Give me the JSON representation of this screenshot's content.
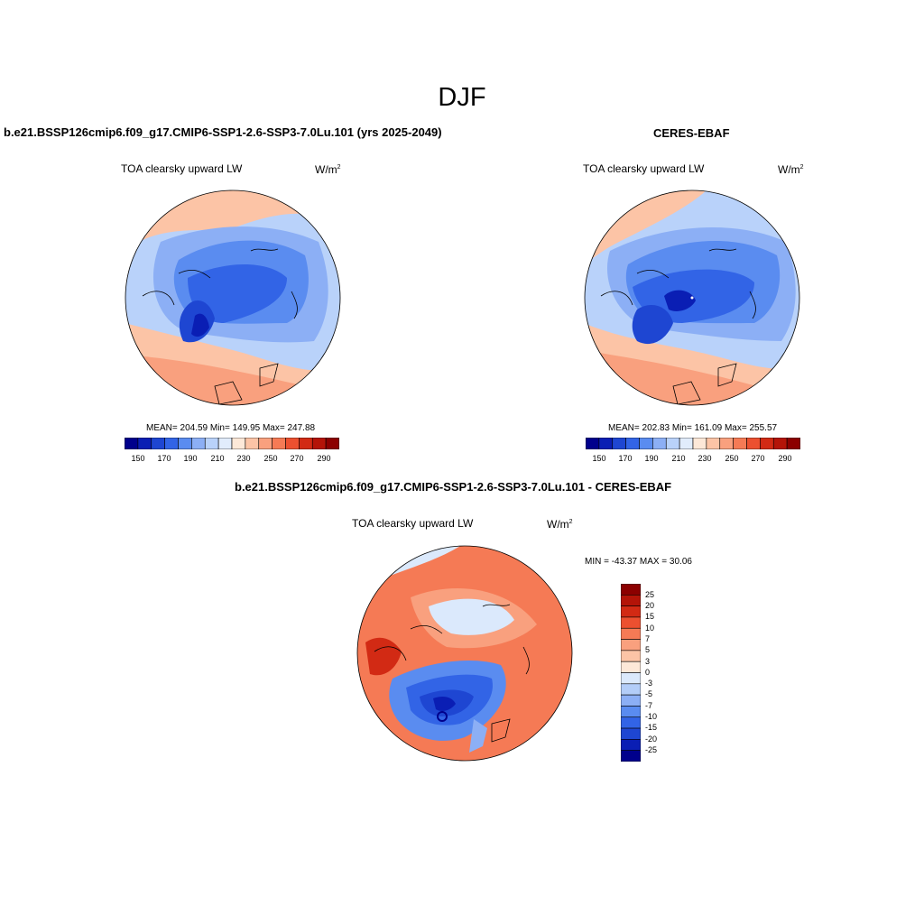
{
  "title": "DJF",
  "panels": {
    "model": {
      "title": "b.e21.BSSP126cmip6.f09_g17.CMIP6-SSP1-2.6-SSP3-7.0Lu.101 (yrs 2025-2049)",
      "variable": "TOA clearsky upward LW",
      "units": "W/m",
      "units_sup": "2",
      "stats": "MEAN= 204.59  Min= 149.95  Max= 247.88"
    },
    "obs": {
      "title": "CERES-EBAF",
      "variable": "TOA clearsky upward LW",
      "units": "W/m",
      "units_sup": "2",
      "stats": "MEAN= 202.83  Min= 161.09  Max= 255.57"
    },
    "diff": {
      "title": "b.e21.BSSP126cmip6.f09_g17.CMIP6-SSP1-2.6-SSP3-7.0Lu.101 - CERES-EBAF",
      "variable": "TOA clearsky upward LW",
      "units": "W/m",
      "units_sup": "2",
      "stats": "MIN = -43.37 MAX =  30.06"
    }
  },
  "colorbar_abs": {
    "labels": [
      "150",
      "170",
      "190",
      "210",
      "230",
      "250",
      "270",
      "290"
    ],
    "colors": [
      "#00008c",
      "#0a1eb4",
      "#1e46d2",
      "#3264e6",
      "#5a8cf0",
      "#8caff5",
      "#b9d2fa",
      "#e1ecfc",
      "#fde8d8",
      "#fcc4a6",
      "#f9a07e",
      "#f57a55",
      "#ec5030",
      "#d22a14",
      "#b41408",
      "#8c0000"
    ]
  },
  "colorbar_diff": {
    "labels": [
      "25",
      "20",
      "15",
      "10",
      "7",
      "5",
      "3",
      "0",
      "-3",
      "-5",
      "-7",
      "-10",
      "-15",
      "-20",
      "-25"
    ],
    "colors": [
      "#8c0000",
      "#b41408",
      "#d22a14",
      "#ec5030",
      "#f57a55",
      "#f9a07e",
      "#fcc4a6",
      "#fde8d8",
      "#dbe9fc",
      "#b3cdf8",
      "#8caff5",
      "#5a8cf0",
      "#3264e6",
      "#1e46d2",
      "#0a1eb4",
      "#00008c"
    ]
  }
}
